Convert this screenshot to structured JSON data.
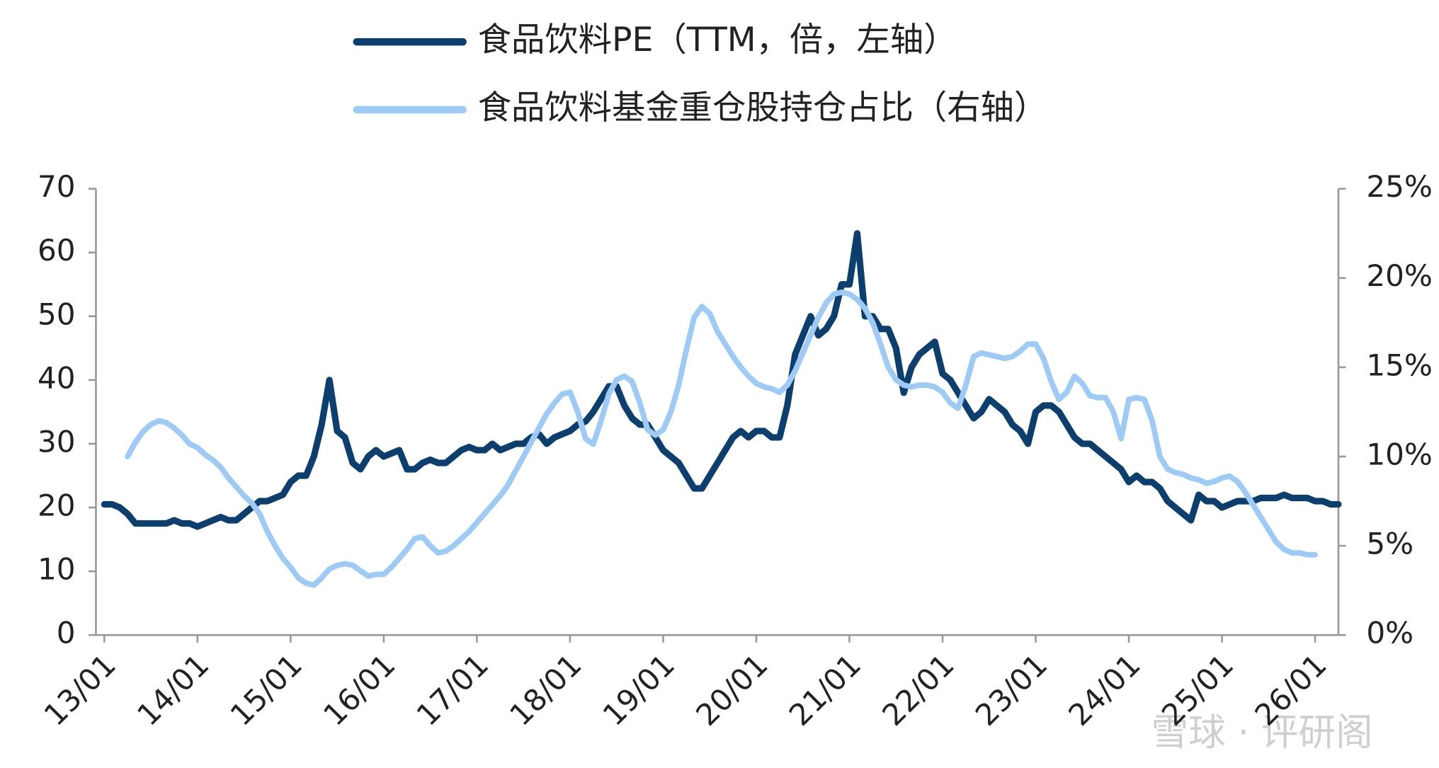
{
  "chart_data": {
    "type": "line",
    "watermark": "雪球 · 评研阁",
    "x": [
      "13/01",
      "13/02",
      "13/03",
      "13/04",
      "13/05",
      "13/06",
      "13/07",
      "13/08",
      "13/09",
      "13/10",
      "13/11",
      "13/12",
      "14/01",
      "14/02",
      "14/03",
      "14/04",
      "14/05",
      "14/06",
      "14/07",
      "14/08",
      "14/09",
      "14/10",
      "14/11",
      "14/12",
      "15/01",
      "15/02",
      "15/03",
      "15/04",
      "15/05",
      "15/06",
      "15/07",
      "15/08",
      "15/09",
      "15/10",
      "15/11",
      "15/12",
      "16/01",
      "16/02",
      "16/03",
      "16/04",
      "16/05",
      "16/06",
      "16/07",
      "16/08",
      "16/09",
      "16/10",
      "16/11",
      "16/12",
      "17/01",
      "17/02",
      "17/03",
      "17/04",
      "17/05",
      "17/06",
      "17/07",
      "17/08",
      "17/09",
      "17/10",
      "17/11",
      "17/12",
      "18/01",
      "18/02",
      "18/03",
      "18/04",
      "18/05",
      "18/06",
      "18/07",
      "18/08",
      "18/09",
      "18/10",
      "18/11",
      "18/12",
      "19/01",
      "19/02",
      "19/03",
      "19/04",
      "19/05",
      "19/06",
      "19/07",
      "19/08",
      "19/09",
      "19/10",
      "19/11",
      "19/12",
      "20/01",
      "20/02",
      "20/03",
      "20/04",
      "20/05",
      "20/06",
      "20/07",
      "20/08",
      "20/09",
      "20/10",
      "20/11",
      "20/12",
      "21/01",
      "21/02",
      "21/03",
      "21/04",
      "21/05",
      "21/06",
      "21/07",
      "21/08",
      "21/09",
      "21/10",
      "21/11",
      "21/12",
      "22/01",
      "22/02",
      "22/03",
      "22/04",
      "22/05",
      "22/06",
      "22/07",
      "22/08",
      "22/09",
      "22/10",
      "22/11",
      "22/12",
      "23/01",
      "23/02",
      "23/03",
      "23/04",
      "23/05",
      "23/06",
      "23/07",
      "23/08",
      "23/09",
      "23/10",
      "23/11",
      "23/12",
      "24/01",
      "24/02",
      "24/03",
      "24/04",
      "24/05",
      "24/06",
      "24/07",
      "24/08",
      "24/09",
      "24/10",
      "24/11",
      "24/12",
      "25/01",
      "25/02",
      "25/03",
      "25/04",
      "25/05",
      "25/06",
      "25/07",
      "25/08",
      "25/09",
      "25/10",
      "25/11",
      "25/12",
      "26/01",
      "26/02",
      "26/03",
      "26/04"
    ],
    "xticks": [
      "13/01",
      "14/01",
      "15/01",
      "16/01",
      "17/01",
      "18/01",
      "19/01",
      "20/01",
      "21/01",
      "22/01",
      "23/01",
      "24/01",
      "25/01",
      "26/01"
    ],
    "ylim": [
      0,
      70
    ],
    "yticks": [
      0,
      10,
      20,
      30,
      40,
      50,
      60,
      70
    ],
    "y2lim": [
      0,
      25
    ],
    "y2ticks": [
      {
        "value": 0,
        "label": "0%"
      },
      {
        "value": 5,
        "label": "5%"
      },
      {
        "value": 10,
        "label": "10%"
      },
      {
        "value": 15,
        "label": "15%"
      },
      {
        "value": 20,
        "label": "20%"
      },
      {
        "value": 25,
        "label": "25%"
      }
    ],
    "series": [
      {
        "name": "食品饮料PE（TTM，倍，左轴）",
        "color": "#0d3f6e",
        "axis": "y",
        "values": [
          20.5,
          20.5,
          20,
          19,
          17.5,
          17.5,
          17.5,
          17.5,
          17.5,
          18,
          17.5,
          17.5,
          17,
          17.5,
          18,
          18.5,
          18,
          18,
          19,
          20,
          21,
          21,
          21.5,
          22,
          24,
          25,
          25,
          28,
          33,
          40,
          32,
          31,
          27,
          26,
          28,
          29,
          28,
          28.5,
          29,
          26,
          26,
          27,
          27.5,
          27,
          27,
          28,
          29,
          29.5,
          29,
          29,
          30,
          29,
          29.5,
          30,
          30,
          31,
          31.5,
          30,
          31,
          31.5,
          32,
          33,
          33.5,
          35,
          37,
          39,
          39,
          36,
          34,
          33,
          33,
          31,
          29,
          28,
          27,
          25,
          23,
          23,
          25,
          27,
          29,
          31,
          32,
          31,
          32,
          32,
          31,
          31,
          36,
          44,
          47,
          50,
          47,
          48,
          50,
          55,
          55,
          63,
          50,
          50,
          48,
          48,
          45,
          38,
          42,
          44,
          45,
          46,
          41,
          40,
          38,
          36,
          34,
          35,
          37,
          36,
          35,
          33,
          32,
          30,
          35,
          36,
          36,
          35,
          33,
          31,
          30,
          30,
          29,
          28,
          27,
          26,
          24,
          25,
          24,
          24,
          23,
          21,
          20,
          19,
          18,
          22,
          21,
          21,
          20,
          20.5,
          21,
          21,
          21,
          21.5,
          21.5,
          21.5,
          22,
          21.5,
          21.5,
          21.5,
          21,
          21,
          20.5,
          20.5
        ]
      },
      {
        "name": "食品饮料基金重仓股持仓占比（右轴）",
        "color": "#9ecbf5",
        "axis": "y2",
        "values": [
          null,
          null,
          null,
          10,
          10.8,
          11.4,
          11.8,
          12,
          11.9,
          11.6,
          11.2,
          10.7,
          10.5,
          10.1,
          9.8,
          9.4,
          8.8,
          8.3,
          7.8,
          7.4,
          6.8,
          5.8,
          5,
          4.3,
          3.8,
          3.2,
          2.9,
          2.8,
          3.2,
          3.7,
          3.9,
          4,
          3.9,
          3.6,
          3.3,
          3.4,
          3.4,
          3.8,
          4.3,
          4.8,
          5.4,
          5.5,
          5,
          4.6,
          4.7,
          5,
          5.4,
          5.8,
          6.3,
          6.8,
          7.3,
          7.8,
          8.4,
          9.2,
          10,
          10.8,
          11.6,
          12.4,
          13,
          13.5,
          13.6,
          12.5,
          11,
          10.7,
          12,
          13.5,
          14.3,
          14.5,
          14.2,
          13,
          11.5,
          11.2,
          11.5,
          12.5,
          14,
          16,
          17.8,
          18.4,
          18,
          17,
          16.3,
          15.6,
          15,
          14.5,
          14.1,
          13.9,
          13.8,
          13.6,
          14,
          14.8,
          15.8,
          16.8,
          17.8,
          18.6,
          19.1,
          19.2,
          19.1,
          18.8,
          18.3,
          17.5,
          16.3,
          15,
          14.3,
          14,
          13.9,
          14,
          14,
          13.9,
          13.6,
          13,
          12.7,
          14,
          15.6,
          15.8,
          15.7,
          15.6,
          15.5,
          15.6,
          15.9,
          16.3,
          16.3,
          15.5,
          14.2,
          13.2,
          13.6,
          14.5,
          14.1,
          13.4,
          13.3,
          13.3,
          12.5,
          11,
          13.2,
          13.3,
          13.2,
          12,
          10,
          9.3,
          9.1,
          9,
          8.8,
          8.7,
          8.5,
          8.6,
          8.8,
          8.9,
          8.6,
          8,
          7.3,
          6.6,
          5.9,
          5.2,
          4.8,
          4.6,
          4.6,
          4.5,
          4.5,
          null,
          null,
          null
        ]
      }
    ]
  }
}
